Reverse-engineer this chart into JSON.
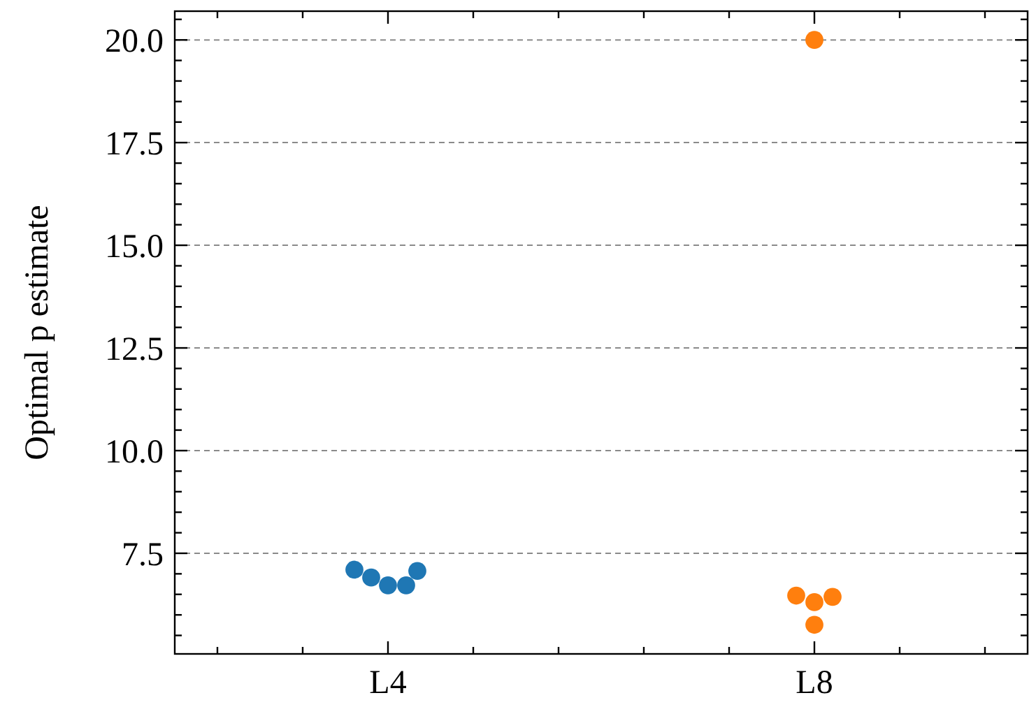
{
  "chart_data": {
    "type": "scatter",
    "ylabel": "Optimal p estimate",
    "categories": [
      "L4",
      "L8"
    ],
    "ylim": [
      5.05,
      20.7
    ],
    "yticks": [
      {
        "value": 5.5,
        "label": null
      },
      {
        "value": 6,
        "label": null
      },
      {
        "value": 6.5,
        "label": null
      },
      {
        "value": 7,
        "label": null
      },
      {
        "value": 7.5,
        "label": "7.5"
      },
      {
        "value": 8,
        "label": null
      },
      {
        "value": 8.5,
        "label": null
      },
      {
        "value": 9,
        "label": null
      },
      {
        "value": 9.5,
        "label": null
      },
      {
        "value": 10,
        "label": "10.0"
      },
      {
        "value": 10.5,
        "label": null
      },
      {
        "value": 11,
        "label": null
      },
      {
        "value": 11.5,
        "label": null
      },
      {
        "value": 12,
        "label": null
      },
      {
        "value": 12.5,
        "label": "12.5"
      },
      {
        "value": 13,
        "label": null
      },
      {
        "value": 13.5,
        "label": null
      },
      {
        "value": 14,
        "label": null
      },
      {
        "value": 14.5,
        "label": null
      },
      {
        "value": 15,
        "label": "15.0"
      },
      {
        "value": 15.5,
        "label": null
      },
      {
        "value": 16,
        "label": null
      },
      {
        "value": 16.5,
        "label": null
      },
      {
        "value": 17,
        "label": null
      },
      {
        "value": 17.5,
        "label": "17.5"
      },
      {
        "value": 18,
        "label": null
      },
      {
        "value": 18.5,
        "label": null
      },
      {
        "value": 19,
        "label": null
      },
      {
        "value": 19.5,
        "label": null
      },
      {
        "value": 20,
        "label": "20.0"
      },
      {
        "value": 20.5,
        "label": null
      }
    ],
    "grid": "y",
    "marker": "circle",
    "series": [
      {
        "color": "#1f77b4",
        "x": [
          "L4",
          "L4",
          "L4",
          "L4",
          "L4"
        ],
        "values": [
          7.07,
          6.72,
          6.72,
          6.91,
          7.1
        ]
      },
      {
        "color": "#ff7f0e",
        "x": [
          "L8",
          "L8",
          "L8",
          "L8",
          "L8"
        ],
        "values": [
          6.47,
          6.31,
          6.44,
          5.76,
          20.0
        ]
      }
    ]
  }
}
